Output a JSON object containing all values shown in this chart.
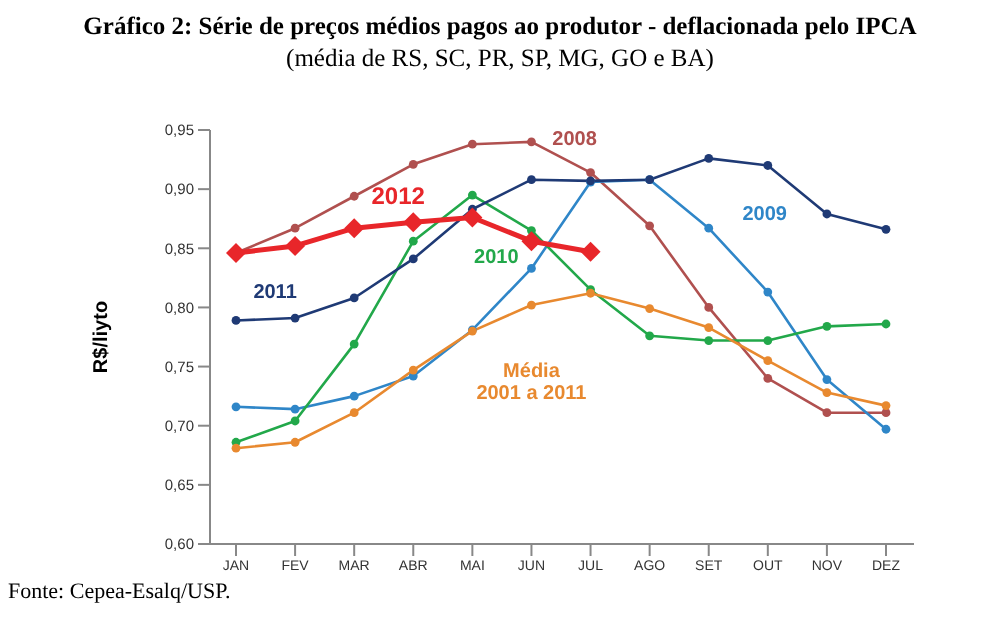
{
  "chart_data": {
    "type": "line",
    "title": "Gráfico 2: Série de preços médios pagos ao produtor - deflacionada pelo IPCA",
    "subtitle": "(média de RS, SC, PR, SP, MG, GO e BA)",
    "ylabel": "R$/liyto",
    "categories": [
      "JAN",
      "FEV",
      "MAR",
      "ABR",
      "MAI",
      "JUN",
      "JUL",
      "AGO",
      "SET",
      "OUT",
      "NOV",
      "DEZ"
    ],
    "ylim": [
      0.6,
      0.95
    ],
    "yticks": [
      {
        "value": 0.6,
        "label": "0,60"
      },
      {
        "value": 0.65,
        "label": "0,65"
      },
      {
        "value": 0.7,
        "label": "0,70"
      },
      {
        "value": 0.75,
        "label": "0,75"
      },
      {
        "value": 0.8,
        "label": "0,80"
      },
      {
        "value": 0.85,
        "label": "0,85"
      },
      {
        "value": 0.9,
        "label": "0,90"
      },
      {
        "value": 0.95,
        "label": "0,95"
      }
    ],
    "marker": "circle",
    "series": [
      {
        "name": "2008",
        "color": "#b0504f",
        "values": [
          0.846,
          0.867,
          0.894,
          0.921,
          0.938,
          0.94,
          0.914,
          0.869,
          0.8,
          0.74,
          0.711,
          0.711
        ]
      },
      {
        "name": "2009",
        "color": "#2f86c8",
        "values": [
          0.716,
          0.714,
          0.725,
          0.742,
          0.781,
          0.833,
          0.906,
          0.908,
          0.867,
          0.813,
          0.739,
          0.697
        ]
      },
      {
        "name": "2010",
        "color": "#22a84a",
        "values": [
          0.686,
          0.704,
          0.769,
          0.856,
          0.895,
          0.865,
          0.815,
          0.776,
          0.772,
          0.772,
          0.784,
          0.786
        ]
      },
      {
        "name": "2011",
        "color": "#1f3a75",
        "values": [
          0.789,
          0.791,
          0.808,
          0.841,
          0.883,
          0.908,
          0.907,
          0.908,
          0.926,
          0.92,
          0.879,
          0.866
        ]
      },
      {
        "name": "Média 2001 a 2011",
        "color": "#e8892f",
        "values": [
          0.681,
          0.686,
          0.711,
          0.747,
          0.78,
          0.802,
          0.812,
          0.799,
          0.783,
          0.755,
          0.728,
          0.717
        ]
      },
      {
        "name": "2012",
        "color": "#e8262a",
        "marker": "diamond",
        "values": [
          0.846,
          0.852,
          0.867,
          0.872,
          0.876,
          0.856,
          0.847,
          null,
          null,
          null,
          null,
          null
        ]
      }
    ],
    "annotations": [
      "Fonte: Cepea-Esalq/USP."
    ]
  }
}
